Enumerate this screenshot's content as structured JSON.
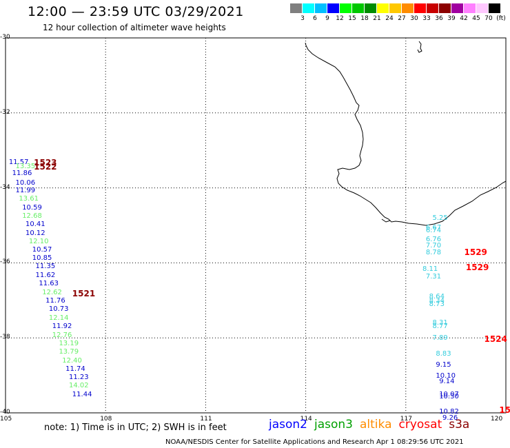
{
  "title": "12:00 — 23:59 UTC 03/29/2021",
  "subtitle": "12 hour collection of altimeter wave heights",
  "scale": {
    "colors": [
      "#7f7f7f",
      "#00ffff",
      "#00bfff",
      "#0000ff",
      "#00ff00",
      "#00c800",
      "#008c00",
      "#ffff00",
      "#ffc800",
      "#ff8c00",
      "#ff0000",
      "#c80000",
      "#8c0000",
      "#a000a0",
      "#ff80ff",
      "#ffc8ff",
      "#000000"
    ],
    "labels": [
      "3",
      "6",
      "9",
      "12",
      "15",
      "18",
      "21",
      "24",
      "27",
      "30",
      "33",
      "36",
      "39",
      "42",
      "45",
      "70",
      "(ft)"
    ]
  },
  "map": {
    "lon_ticks": [
      "105",
      "108",
      "111",
      "114",
      "117",
      "120"
    ],
    "lat_ticks": [
      "-30",
      "-32",
      "-34",
      "-36",
      "-38",
      "-40"
    ],
    "lon_range": [
      105,
      120
    ],
    "lat_range": [
      -30,
      -40
    ]
  },
  "wave_labels": [
    {
      "v": "11.57",
      "c": "#0000cc",
      "lon": 105.1,
      "lat": -33.32
    },
    {
      "v": "13.35",
      "c": "#66ee66",
      "lon": 105.3,
      "lat": -33.44
    },
    {
      "v": "11.86",
      "c": "#0000cc",
      "lon": 105.2,
      "lat": -33.63
    },
    {
      "v": "10.06",
      "c": "#0000cc",
      "lon": 105.3,
      "lat": -33.87
    },
    {
      "v": "11.99",
      "c": "#0000cc",
      "lon": 105.3,
      "lat": -34.08
    },
    {
      "v": "13.61",
      "c": "#66ee66",
      "lon": 105.4,
      "lat": -34.3
    },
    {
      "v": "10.59",
      "c": "#0000cc",
      "lon": 105.5,
      "lat": -34.54
    },
    {
      "v": "12.68",
      "c": "#66ee66",
      "lon": 105.5,
      "lat": -34.76
    },
    {
      "v": "10.41",
      "c": "#0000cc",
      "lon": 105.6,
      "lat": -34.98
    },
    {
      "v": "10.12",
      "c": "#0000cc",
      "lon": 105.6,
      "lat": -35.22
    },
    {
      "v": "12.10",
      "c": "#66ee66",
      "lon": 105.7,
      "lat": -35.44
    },
    {
      "v": "10.57",
      "c": "#0000cc",
      "lon": 105.8,
      "lat": -35.67
    },
    {
      "v": "10.85",
      "c": "#0000cc",
      "lon": 105.8,
      "lat": -35.89
    },
    {
      "v": "11.35",
      "c": "#0000cc",
      "lon": 105.9,
      "lat": -36.11
    },
    {
      "v": "11.62",
      "c": "#0000cc",
      "lon": 105.9,
      "lat": -36.35
    },
    {
      "v": "11.63",
      "c": "#0000cc",
      "lon": 106.0,
      "lat": -36.57
    },
    {
      "v": "12.62",
      "c": "#66ee66",
      "lon": 106.1,
      "lat": -36.81
    },
    {
      "v": "11.76",
      "c": "#0000cc",
      "lon": 106.2,
      "lat": -37.03
    },
    {
      "v": "10.73",
      "c": "#0000cc",
      "lon": 106.3,
      "lat": -37.25
    },
    {
      "v": "12.14",
      "c": "#66ee66",
      "lon": 106.3,
      "lat": -37.49
    },
    {
      "v": "11.92",
      "c": "#0000cc",
      "lon": 106.4,
      "lat": -37.71
    },
    {
      "v": "12.76",
      "c": "#66ee66",
      "lon": 106.4,
      "lat": -37.94
    },
    {
      "v": "13.19",
      "c": "#66ee66",
      "lon": 106.6,
      "lat": -38.17
    },
    {
      "v": "13.79",
      "c": "#66ee66",
      "lon": 106.6,
      "lat": -38.39
    },
    {
      "v": "12.40",
      "c": "#66ee66",
      "lon": 106.7,
      "lat": -38.62
    },
    {
      "v": "11.74",
      "c": "#0000cc",
      "lon": 106.8,
      "lat": -38.84
    },
    {
      "v": "11.23",
      "c": "#0000cc",
      "lon": 106.9,
      "lat": -39.07
    },
    {
      "v": "14.02",
      "c": "#66ee66",
      "lon": 106.9,
      "lat": -39.29
    },
    {
      "v": "11.44",
      "c": "#0000cc",
      "lon": 107.0,
      "lat": -39.52
    },
    {
      "v": "5.25",
      "c": "#33ccdd",
      "lon": 117.8,
      "lat": -34.82
    },
    {
      "v": "6.67",
      "c": "#33ccdd",
      "lon": 117.6,
      "lat": -35.08
    },
    {
      "v": "6.74",
      "c": "#33ccdd",
      "lon": 117.6,
      "lat": -35.15
    },
    {
      "v": "6.76",
      "c": "#33ccdd",
      "lon": 117.6,
      "lat": -35.38
    },
    {
      "v": "7.70",
      "c": "#33ccdd",
      "lon": 117.6,
      "lat": -35.56
    },
    {
      "v": "8.78",
      "c": "#33ccdd",
      "lon": 117.6,
      "lat": -35.74
    },
    {
      "v": "8.11",
      "c": "#33ccdd",
      "lon": 117.5,
      "lat": -36.17
    },
    {
      "v": "7.31",
      "c": "#33ccdd",
      "lon": 117.6,
      "lat": -36.37
    },
    {
      "v": "8.64",
      "c": "#33ccdd",
      "lon": 117.7,
      "lat": -36.91
    },
    {
      "v": "8.34",
      "c": "#33ccdd",
      "lon": 117.7,
      "lat": -37.03
    },
    {
      "v": "8.73",
      "c": "#33ccdd",
      "lon": 117.7,
      "lat": -37.11
    },
    {
      "v": "8.31",
      "c": "#33ccdd",
      "lon": 117.8,
      "lat": -37.61
    },
    {
      "v": "8.77",
      "c": "#33ccdd",
      "lon": 117.8,
      "lat": -37.7
    },
    {
      "v": "7.89",
      "c": "#33ccdd",
      "lon": 117.8,
      "lat": -38.01
    },
    {
      "v": "8.83",
      "c": "#33ccdd",
      "lon": 117.9,
      "lat": -38.43
    },
    {
      "v": "9.15",
      "c": "#0000cc",
      "lon": 117.9,
      "lat": -38.73
    },
    {
      "v": "10.10",
      "c": "#0000cc",
      "lon": 117.9,
      "lat": -39.02
    },
    {
      "v": "9.14",
      "c": "#0000cc",
      "lon": 118.0,
      "lat": -39.18
    },
    {
      "v": "10.07",
      "c": "#0000cc",
      "lon": 118.0,
      "lat": -39.52
    },
    {
      "v": "10.30",
      "c": "#0000cc",
      "lon": 118.0,
      "lat": -39.58
    },
    {
      "v": "10.82",
      "c": "#0000cc",
      "lon": 118.0,
      "lat": -39.98
    },
    {
      "v": "9.26",
      "c": "#0000cc",
      "lon": 118.1,
      "lat": -40.15
    }
  ],
  "pass_labels": [
    {
      "v": "1523",
      "c": "#8b0000",
      "lon": 105.85,
      "lat": -33.32
    },
    {
      "v": "1522",
      "c": "#8b0000",
      "lon": 105.85,
      "lat": -33.43
    },
    {
      "v": "1521",
      "c": "#8b0000",
      "lon": 107.0,
      "lat": -36.82
    },
    {
      "v": "1529",
      "c": "#ff0000",
      "lon": 118.75,
      "lat": -35.71
    },
    {
      "v": "1529",
      "c": "#ff0000",
      "lon": 118.8,
      "lat": -36.12
    },
    {
      "v": "1524",
      "c": "#ff0000",
      "lon": 119.35,
      "lat": -38.03
    },
    {
      "v": "15",
      "c": "#ff0000",
      "lon": 119.8,
      "lat": -39.93
    }
  ],
  "note": "note: 1) Time is in UTC; 2) SWH is in feet",
  "legend": [
    {
      "label": "jason2",
      "color": "#0000ff"
    },
    {
      "label": "jason3",
      "color": "#00a000"
    },
    {
      "label": "altika",
      "color": "#ff8c00"
    },
    {
      "label": "cryosat",
      "color": "#ff0000"
    },
    {
      "label": "s3a",
      "color": "#8b0000"
    }
  ],
  "footer": "NOAA/NESDIS Center for Satellite Applications and Research    Apr  1 08:29:56 UTC 2021"
}
